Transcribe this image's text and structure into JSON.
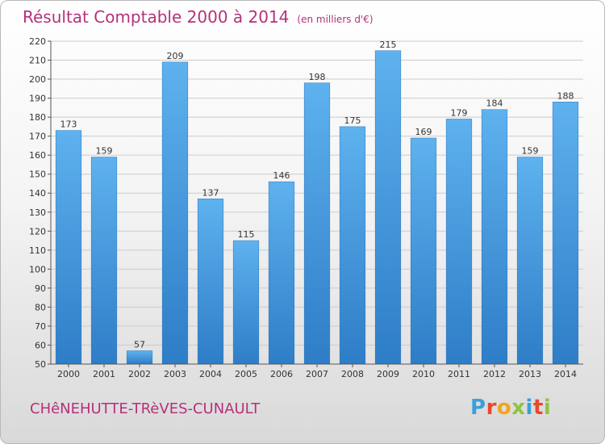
{
  "title": "Résultat Comptable 2000 à 2014",
  "unit_note": "(en milliers d'€)",
  "commune": "CHêNEHUTTE-TRèVES-CUNAULT",
  "logo": {
    "letters": [
      "P",
      "r",
      "o",
      "x",
      "i",
      "t",
      "i"
    ],
    "colors": [
      "#3aa0d8",
      "#e8482f",
      "#f1a51c",
      "#8dc63f",
      "#3aa0d8",
      "#e8482f",
      "#8dc63f"
    ]
  },
  "colors": {
    "bar_light": "#5eb2ee",
    "bar_dark": "#2e7dc7",
    "title": "#b5317b",
    "grid": "#cccccc"
  },
  "chart_data": {
    "type": "bar",
    "title": "Résultat Comptable 2000 à 2014",
    "xlabel": "",
    "ylabel": "",
    "ylim": [
      50,
      220
    ],
    "yticks": [
      50,
      60,
      70,
      80,
      90,
      100,
      110,
      120,
      130,
      140,
      150,
      160,
      170,
      180,
      190,
      200,
      210,
      220
    ],
    "grid": true,
    "categories": [
      "2000",
      "2001",
      "2002",
      "2003",
      "2004",
      "2005",
      "2006",
      "2007",
      "2008",
      "2009",
      "2010",
      "2011",
      "2012",
      "2013",
      "2014"
    ],
    "values": [
      173,
      159,
      57,
      209,
      137,
      115,
      146,
      198,
      175,
      215,
      169,
      179,
      184,
      159,
      188
    ]
  }
}
